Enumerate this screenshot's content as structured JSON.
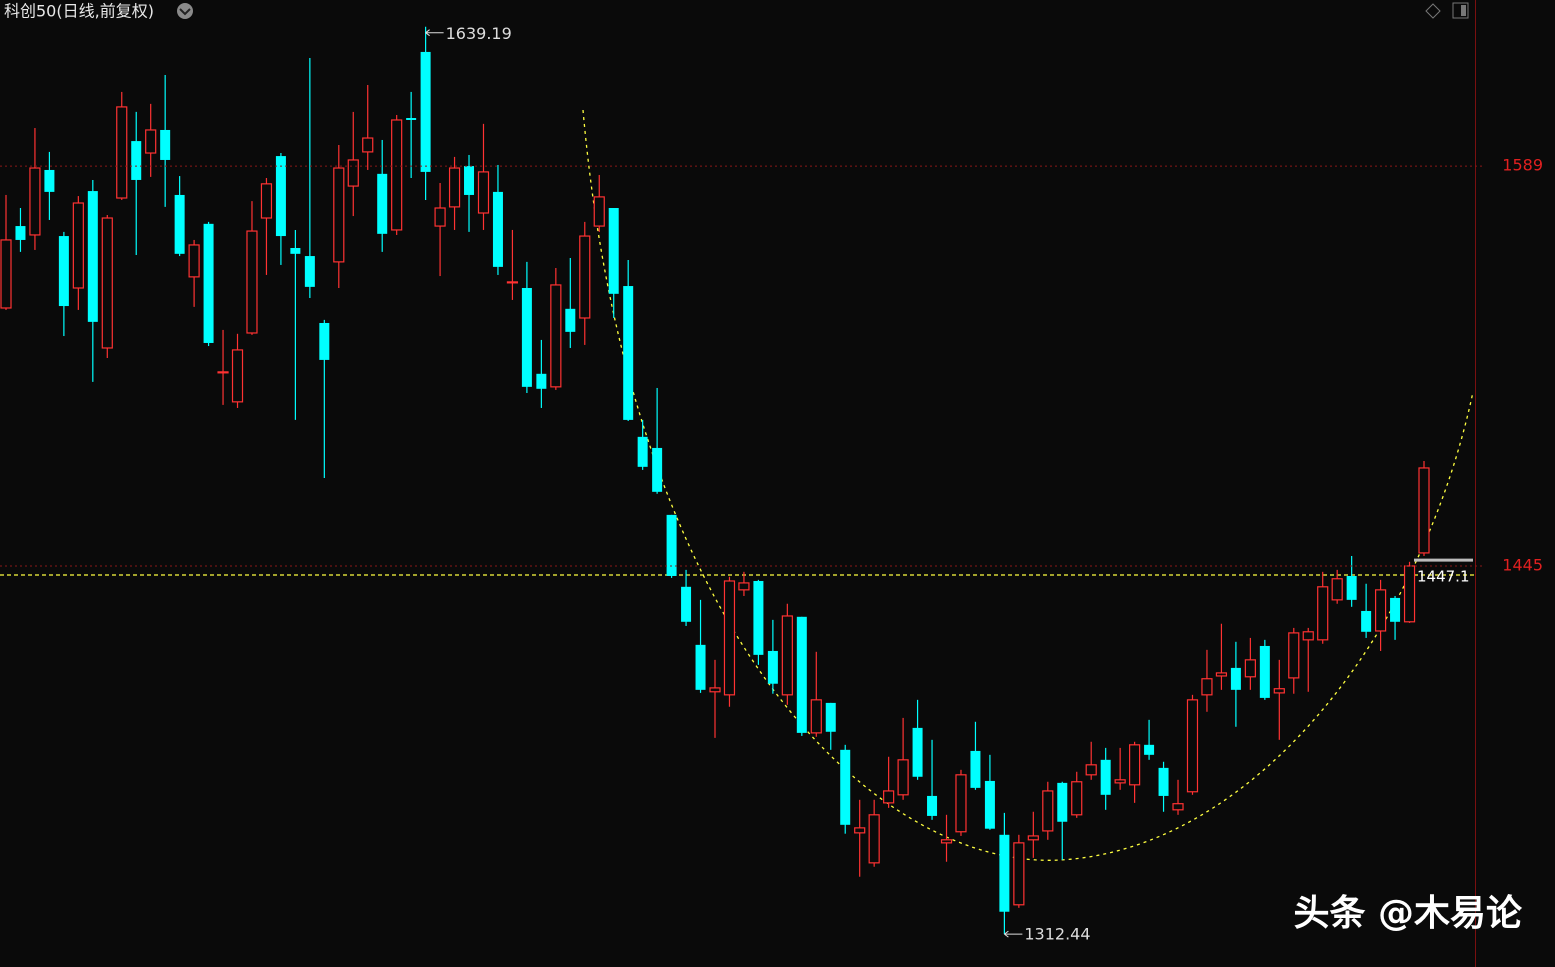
{
  "chart_data": {
    "type": "candlestick",
    "title": "科创50(日线,前复权)",
    "watermark": "头条 @木易论",
    "up_color": "#ff3232",
    "down_color": "#00ffff",
    "ylim": [
      1300.6,
      1648.8
    ],
    "yticks": [
      1589,
      1445
    ],
    "grid": true,
    "price_line": 1447.1,
    "open": [
      1537.9,
      1567.4,
      1564.2,
      1587.6,
      1563.8,
      1545.1,
      1580.0,
      1523.5,
      1577.5,
      1598.0,
      1593.7,
      1602.0,
      1578.6,
      1549.1,
      1568.2,
      1514.9,
      1504.1,
      1528.9,
      1570.3,
      1592.6,
      1559.5,
      1556.6,
      1532.5,
      1554.5,
      1581.8,
      1594.1,
      1586.2,
      1566.0,
      1606.3,
      1630.1,
      1567.4,
      1574.3,
      1589.0,
      1572.1,
      1579.7,
      1547.3,
      1545.1,
      1514.2,
      1509.5,
      1537.6,
      1534.3,
      1567.4,
      1573.9,
      1545.8,
      1491.5,
      1487.5,
      1463.4,
      1437.5,
      1416.6,
      1399.7,
      1398.6,
      1436.4,
      1439.6,
      1414.4,
      1398.6,
      1426.7,
      1384.9,
      1395.7,
      1378.8,
      1348.9,
      1338.1,
      1359.7,
      1362.6,
      1386.7,
      1362.2,
      1345.3,
      1349.3,
      1378.4,
      1367.6,
      1348.2,
      1323.0,
      1346.4,
      1349.6,
      1366.9,
      1355.4,
      1369.8,
      1375.2,
      1366.9,
      1366.2,
      1380.6,
      1372.3,
      1357.2,
      1363.7,
      1398.6,
      1405.4,
      1408.3,
      1405.1,
      1416.2,
      1399.3,
      1404.7,
      1418.4,
      1418.4,
      1432.8,
      1441.4,
      1428.8,
      1421.6,
      1433.5,
      1424.9,
      1449.7
    ],
    "high": [
      1578.6,
      1573.9,
      1602.7,
      1594.1,
      1565.3,
      1578.2,
      1584.0,
      1571.4,
      1615.7,
      1608.5,
      1611.4,
      1621.8,
      1585.4,
      1562.4,
      1568.9,
      1530.0,
      1528.6,
      1576.4,
      1584.7,
      1593.7,
      1566.0,
      1627.9,
      1533.6,
      1596.6,
      1608.5,
      1618.2,
      1598.4,
      1607.4,
      1615.7,
      1639.19,
      1582.9,
      1592.3,
      1593.0,
      1604.2,
      1589.4,
      1566.0,
      1554.5,
      1526.4,
      1552.3,
      1555.9,
      1568.9,
      1585.8,
      1573.9,
      1555.2,
      1497.6,
      1509.1,
      1463.4,
      1443.6,
      1432.8,
      1411.2,
      1441.1,
      1442.9,
      1440.0,
      1425.6,
      1431.4,
      1426.7,
      1414.1,
      1395.7,
      1380.6,
      1360.8,
      1360.8,
      1376.3,
      1390.3,
      1396.8,
      1382.4,
      1355.4,
      1371.6,
      1388.9,
      1377.0,
      1356.1,
      1348.2,
      1356.5,
      1367.3,
      1367.3,
      1370.9,
      1381.7,
      1379.5,
      1379.5,
      1381.7,
      1389.6,
      1374.5,
      1368.0,
      1398.6,
      1414.8,
      1424.2,
      1417.7,
      1419.1,
      1418.4,
      1411.2,
      1422.7,
      1422.7,
      1442.9,
      1443.6,
      1448.6,
      1438.6,
      1440.0,
      1434.2,
      1446.5,
      1482.8
    ],
    "low": [
      1537.2,
      1558.1,
      1558.8,
      1569.6,
      1527.8,
      1537.2,
      1511.3,
      1519.9,
      1576.8,
      1557.0,
      1585.1,
      1574.3,
      1556.6,
      1538.3,
      1524.2,
      1503.0,
      1501.9,
      1528.2,
      1549.8,
      1553.4,
      1497.6,
      1541.5,
      1476.7,
      1545.1,
      1571.0,
      1587.6,
      1558.1,
      1564.2,
      1584.7,
      1576.8,
      1549.4,
      1566.0,
      1565.3,
      1566.0,
      1549.8,
      1540.8,
      1507.3,
      1501.9,
      1508.4,
      1523.5,
      1524.6,
      1565.3,
      1534.3,
      1497.2,
      1479.6,
      1471.0,
      1440.7,
      1423.4,
      1399.3,
      1383.1,
      1394.3,
      1434.2,
      1409.4,
      1399.0,
      1395.0,
      1383.8,
      1383.5,
      1378.8,
      1348.6,
      1333.1,
      1336.7,
      1357.9,
      1360.8,
      1368.0,
      1353.6,
      1338.5,
      1347.8,
      1364.4,
      1350.0,
      1312.44,
      1321.9,
      1339.9,
      1346.4,
      1339.2,
      1354.3,
      1368.0,
      1357.2,
      1364.4,
      1359.7,
      1375.2,
      1356.5,
      1355.4,
      1362.6,
      1392.5,
      1400.4,
      1387.1,
      1400.4,
      1396.8,
      1382.4,
      1399.0,
      1399.7,
      1417.0,
      1431.4,
      1430.3,
      1419.1,
      1414.4,
      1418.4,
      1424.5,
      1448.6
    ],
    "close": [
      1562.4,
      1562.4,
      1588.3,
      1579.7,
      1538.6,
      1575.7,
      1532.9,
      1570.3,
      1610.3,
      1584.0,
      1602.0,
      1591.2,
      1557.4,
      1560.6,
      1525.3,
      1514.9,
      1522.8,
      1565.6,
      1582.6,
      1563.8,
      1557.4,
      1545.5,
      1519.2,
      1588.3,
      1591.2,
      1599.1,
      1564.6,
      1605.6,
      1605.6,
      1586.9,
      1573.9,
      1588.3,
      1578.6,
      1586.9,
      1552.7,
      1547.3,
      1509.5,
      1508.8,
      1546.2,
      1529.3,
      1563.8,
      1577.9,
      1543.0,
      1497.6,
      1480.7,
      1471.7,
      1441.4,
      1424.9,
      1400.4,
      1401.1,
      1439.6,
      1438.9,
      1413.0,
      1402.6,
      1427.0,
      1384.9,
      1396.8,
      1385.3,
      1351.8,
      1350.7,
      1355.4,
      1364.0,
      1375.2,
      1369.1,
      1355.0,
      1346.4,
      1369.8,
      1365.1,
      1350.4,
      1320.5,
      1345.3,
      1347.8,
      1364.0,
      1352.9,
      1367.3,
      1373.4,
      1362.6,
      1368.0,
      1380.6,
      1377.0,
      1362.2,
      1359.4,
      1396.8,
      1404.4,
      1406.5,
      1400.4,
      1411.2,
      1397.5,
      1400.8,
      1420.9,
      1421.3,
      1437.5,
      1440.4,
      1432.8,
      1421.3,
      1436.4,
      1424.9,
      1445.0,
      1480.3
    ]
  }
}
